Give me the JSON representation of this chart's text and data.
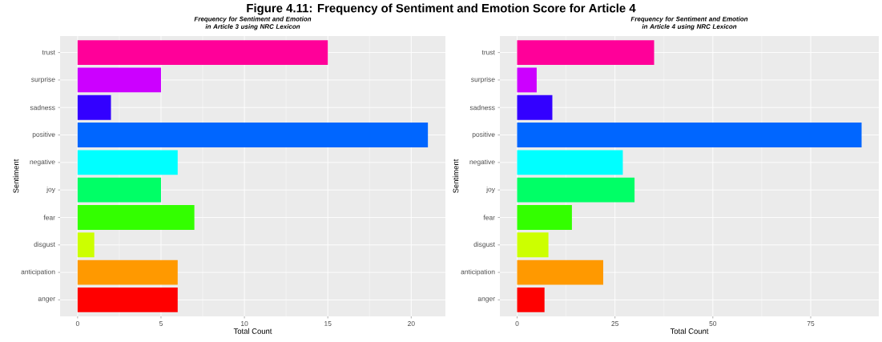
{
  "chart_data": [
    {
      "type": "other",
      "title": "Figure 4.11: Frequency of Sentiment and Emotion Score for Article 4"
    },
    {
      "type": "bar",
      "orientation": "horizontal",
      "title": "Frequency for Sentiment and Emotion in Article 3 using NRC Lexicon",
      "xlabel": "Total Count",
      "ylabel": "Sentiment",
      "categories": [
        "trust",
        "surprise",
        "sadness",
        "positive",
        "negative",
        "joy",
        "fear",
        "disgust",
        "anticipation",
        "anger"
      ],
      "values": [
        15,
        5,
        2,
        21,
        6,
        5,
        7,
        1,
        6,
        6
      ],
      "colors": [
        "#ff0099",
        "#cc00ff",
        "#3300ff",
        "#0066ff",
        "#00ffff",
        "#00ff66",
        "#33ff00",
        "#ccff00",
        "#ff9900",
        "#ff0000"
      ],
      "xlim": [
        -1.05,
        22.05
      ],
      "xticks": [
        0,
        5,
        10,
        15,
        20
      ],
      "grid": true
    },
    {
      "type": "bar",
      "orientation": "horizontal",
      "title": "Frequency for Sentiment and Emotion in Article 4 using NRC Lexicon",
      "xlabel": "Total Count",
      "ylabel": "Sentiment",
      "categories": [
        "trust",
        "surprise",
        "sadness",
        "positive",
        "negative",
        "joy",
        "fear",
        "disgust",
        "anticipation",
        "anger"
      ],
      "values": [
        35,
        5,
        9,
        88,
        27,
        30,
        14,
        8,
        22,
        7
      ],
      "colors": [
        "#ff0099",
        "#cc00ff",
        "#3300ff",
        "#0066ff",
        "#00ffff",
        "#00ff66",
        "#33ff00",
        "#ccff00",
        "#ff9900",
        "#ff0000"
      ],
      "xlim": [
        -4.4,
        92.4
      ],
      "xticks": [
        0,
        25,
        50,
        75
      ],
      "grid": true
    }
  ]
}
